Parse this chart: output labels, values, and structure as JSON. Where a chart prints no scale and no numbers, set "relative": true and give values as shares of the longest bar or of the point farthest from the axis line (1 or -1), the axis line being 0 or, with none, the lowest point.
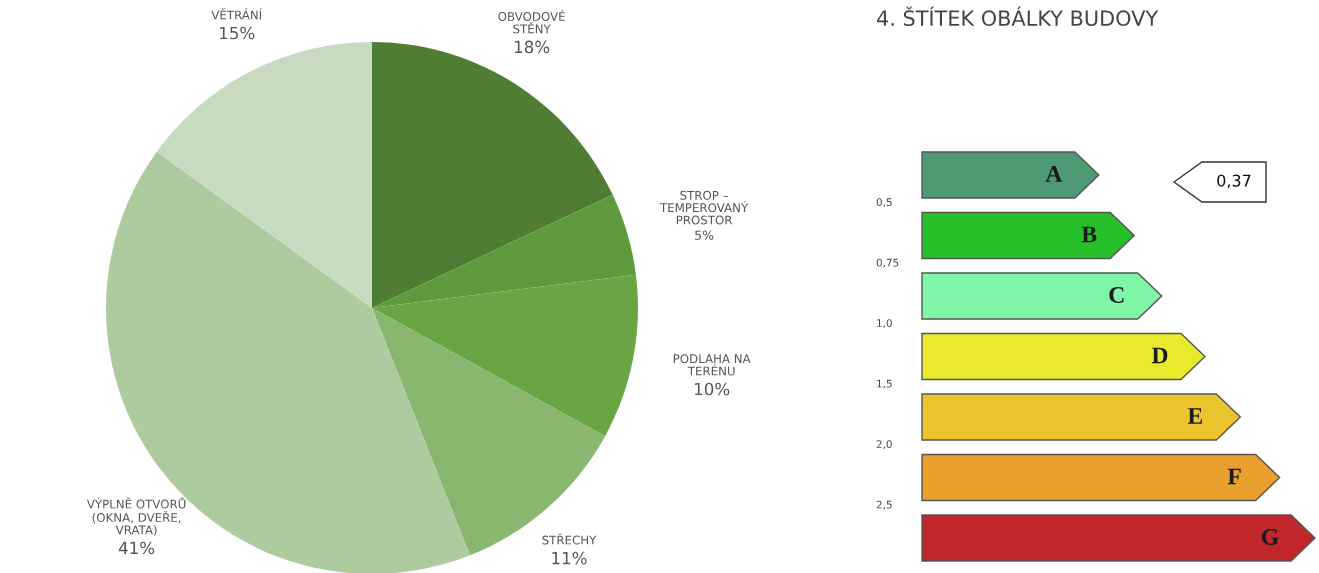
{
  "chart_data": [
    {
      "type": "pie",
      "categories": [
        "OBVODOVÉ\nSTĚNY",
        "STROP –\nTEMPEROVANÝ\nPROSTOR",
        "PODLAHA NA\nTERÉNU",
        "STŘECHY",
        "VÝPLNĚ OTVORŮ\n(OKNA, DVEŘE,\nVRATA)",
        "VĚTRÁNÍ"
      ],
      "values": [
        18,
        5,
        10,
        11,
        41,
        15
      ],
      "value_labels": [
        "18%",
        "5%",
        "10%",
        "11%",
        "41%",
        "15%"
      ],
      "colors": [
        "#4f7d33",
        "#5e9a3c",
        "#6aa544",
        "#89b770",
        "#adcb9e",
        "#c8dbc0"
      ]
    },
    {
      "type": "bar",
      "orientation": "horizontal",
      "relative": true,
      "title": "4. ŠTÍTEK OBÁLKY BUDOVY",
      "values": [
        0.45,
        0.54,
        0.61,
        0.72,
        0.81,
        0.91,
        1
      ],
      "categories": [
        "A",
        "B",
        "C",
        "D",
        "E",
        "F",
        "G"
      ],
      "colors": [
        "#4e9a72",
        "#27c02a",
        "#7ff5a7",
        "#e9ea2c",
        "#e9c42c",
        "#e9a02c",
        "#c1272a"
      ],
      "annotations": [
        "0,5",
        "0,75",
        "1,0",
        "1,5",
        "2,0",
        "2,5",
        "0,37"
      ]
    }
  ]
}
